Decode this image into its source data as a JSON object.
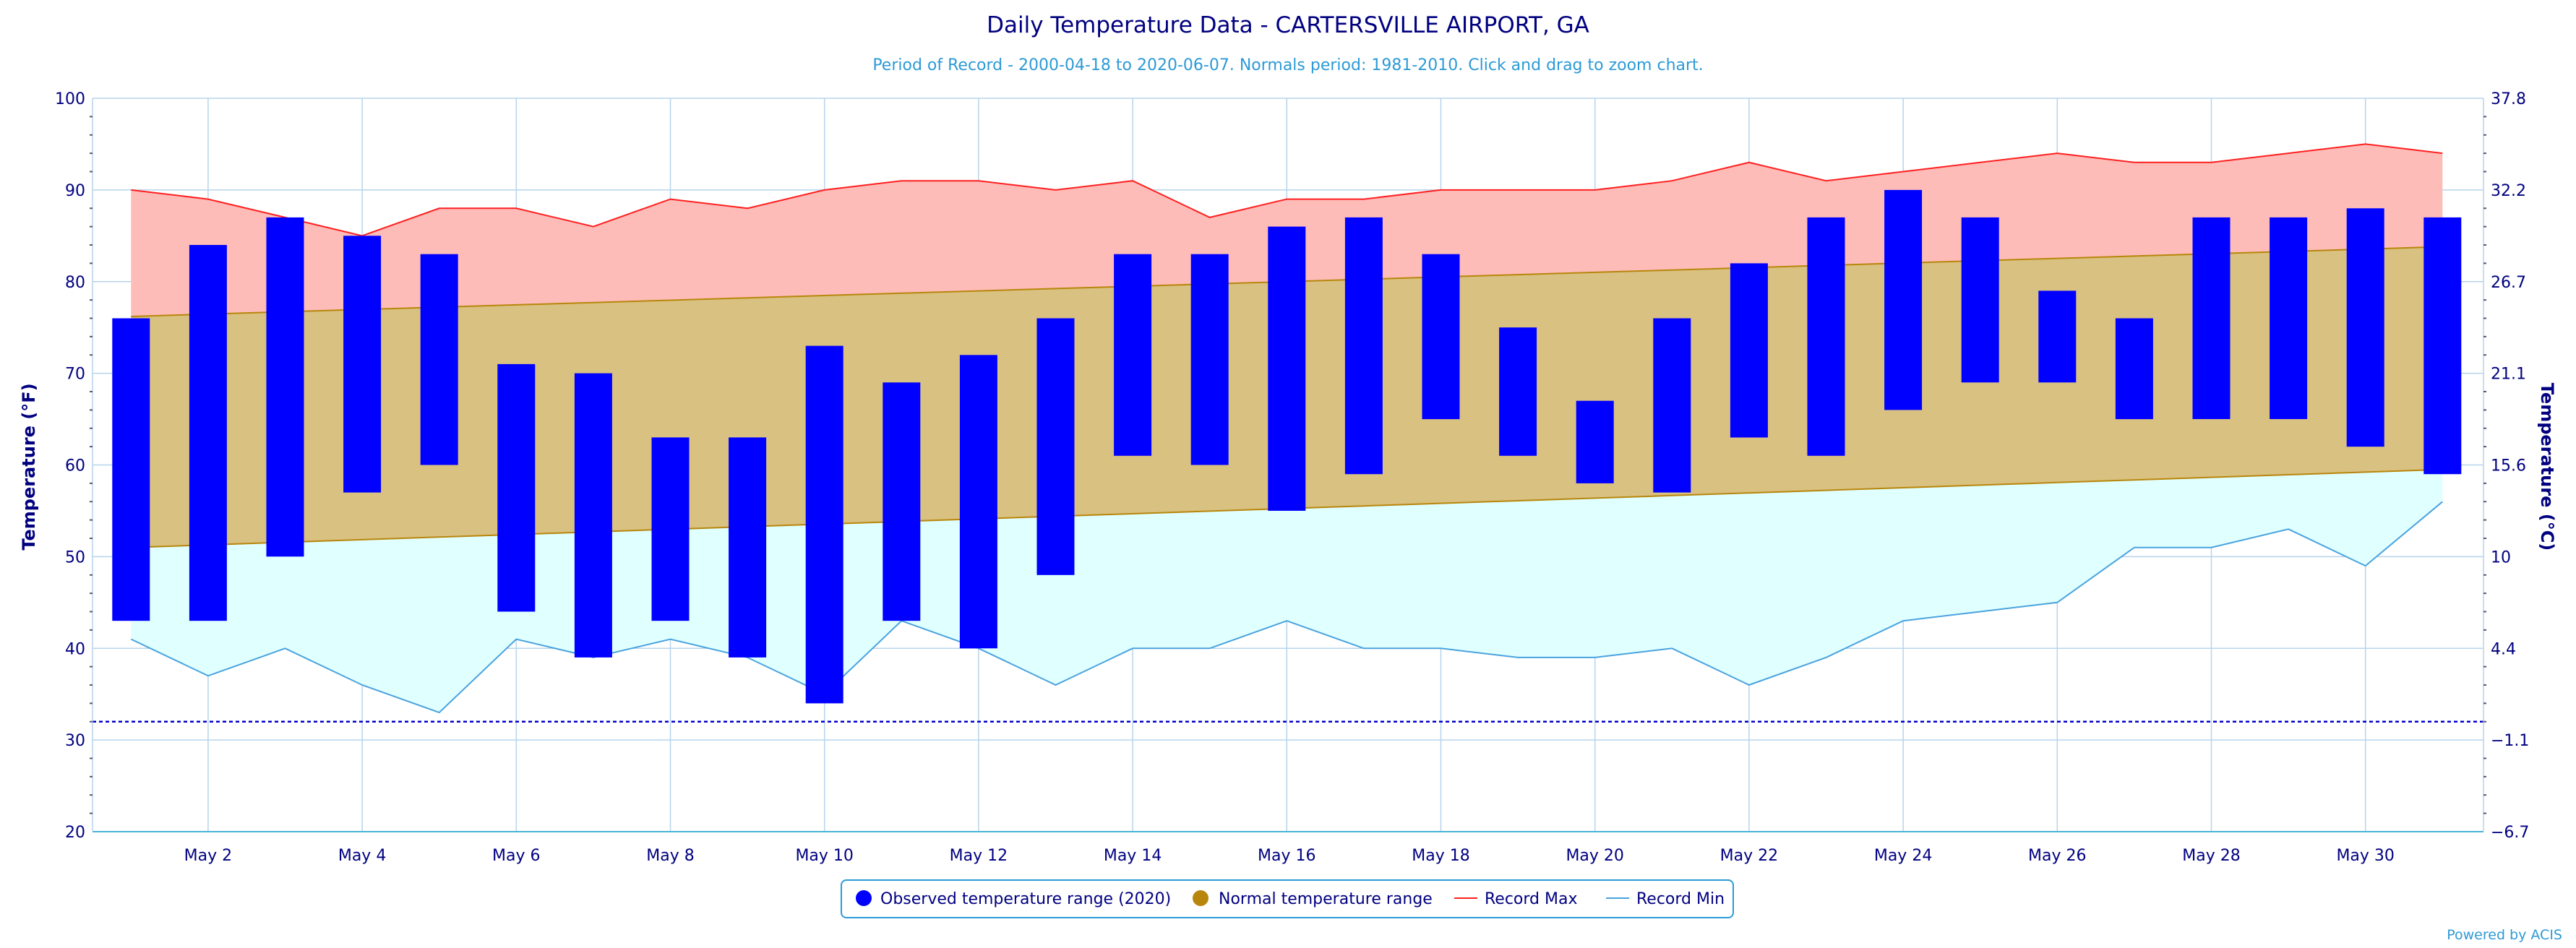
{
  "chart_data": {
    "type": "bar",
    "title": "Daily Temperature Data - CARTERSVILLE AIRPORT, GA",
    "subtitle": "Period of Record - 2000-04-18 to 2020-06-07. Normals period: 1981-2010. Click and drag to zoom chart.",
    "ylabel": "Temperature (°F)",
    "ylabel_right": "Temperature (°C)",
    "ylim": [
      20,
      100
    ],
    "y_ticks": [
      20,
      30,
      40,
      50,
      60,
      70,
      80,
      90,
      100
    ],
    "y_ticks_right": [
      "37.8",
      "32.2",
      "26.7",
      "21.1",
      "15.6",
      "10",
      "4.4",
      "−1.1",
      "−6.7"
    ],
    "x_days": [
      1,
      2,
      3,
      4,
      5,
      6,
      7,
      8,
      9,
      10,
      11,
      12,
      13,
      14,
      15,
      16,
      17,
      18,
      19,
      20,
      21,
      22,
      23,
      24,
      25,
      26,
      27,
      28,
      29,
      30,
      31
    ],
    "x_tick_labels": [
      {
        "day": 2,
        "label": "May 2"
      },
      {
        "day": 4,
        "label": "May 4"
      },
      {
        "day": 6,
        "label": "May 6"
      },
      {
        "day": 8,
        "label": "May 8"
      },
      {
        "day": 10,
        "label": "May 10"
      },
      {
        "day": 12,
        "label": "May 12"
      },
      {
        "day": 14,
        "label": "May 14"
      },
      {
        "day": 16,
        "label": "May 16"
      },
      {
        "day": 18,
        "label": "May 18"
      },
      {
        "day": 20,
        "label": "May 20"
      },
      {
        "day": 22,
        "label": "May 22"
      },
      {
        "day": 24,
        "label": "May 24"
      },
      {
        "day": 26,
        "label": "May 26"
      },
      {
        "day": 28,
        "label": "May 28"
      },
      {
        "day": 30,
        "label": "May 30"
      }
    ],
    "freezing_line": 32,
    "observed": {
      "name": "Observed temperature range (2020)",
      "color": "#0000ff",
      "low": [
        43,
        43,
        50,
        57,
        60,
        44,
        39,
        43,
        39,
        34,
        43,
        40,
        48,
        61,
        60,
        55,
        59,
        65,
        61,
        58,
        57,
        63,
        61,
        66,
        69,
        69,
        65,
        65,
        65,
        62,
        59
      ],
      "high": [
        76,
        84,
        87,
        85,
        83,
        71,
        70,
        63,
        63,
        73,
        69,
        72,
        76,
        83,
        83,
        86,
        87,
        83,
        75,
        67,
        76,
        82,
        87,
        90,
        87,
        79,
        76,
        87,
        87,
        88,
        87
      ]
    },
    "normal": {
      "name": "Normal temperature range",
      "color": "#b8860b",
      "fill": "#d9c181",
      "low_start": 51,
      "low_end": 59.5,
      "high_start": 76.2,
      "high_end": 83.8
    },
    "record_max": {
      "name": "Record Max",
      "color": "#ff2020",
      "fill": "#fdbcb8",
      "values": [
        90,
        89,
        87,
        85,
        88,
        88,
        86,
        89,
        88,
        90,
        91,
        91,
        90,
        91,
        87,
        89,
        89,
        90,
        90,
        90,
        91,
        93,
        91,
        92,
        93,
        94,
        93,
        93,
        94,
        95,
        94
      ]
    },
    "record_min": {
      "name": "Record Min",
      "color": "#4aa3df",
      "fill": "#e0ffff",
      "values": [
        41,
        37,
        40,
        36,
        33,
        41,
        39,
        41,
        39,
        35,
        43,
        40,
        36,
        40,
        40,
        43,
        40,
        40,
        39,
        39,
        40,
        36,
        39,
        43,
        44,
        45,
        51,
        51,
        53,
        49,
        56
      ]
    },
    "legend_position": "bottom-center",
    "grid": true
  },
  "credit": "Powered by ACIS"
}
